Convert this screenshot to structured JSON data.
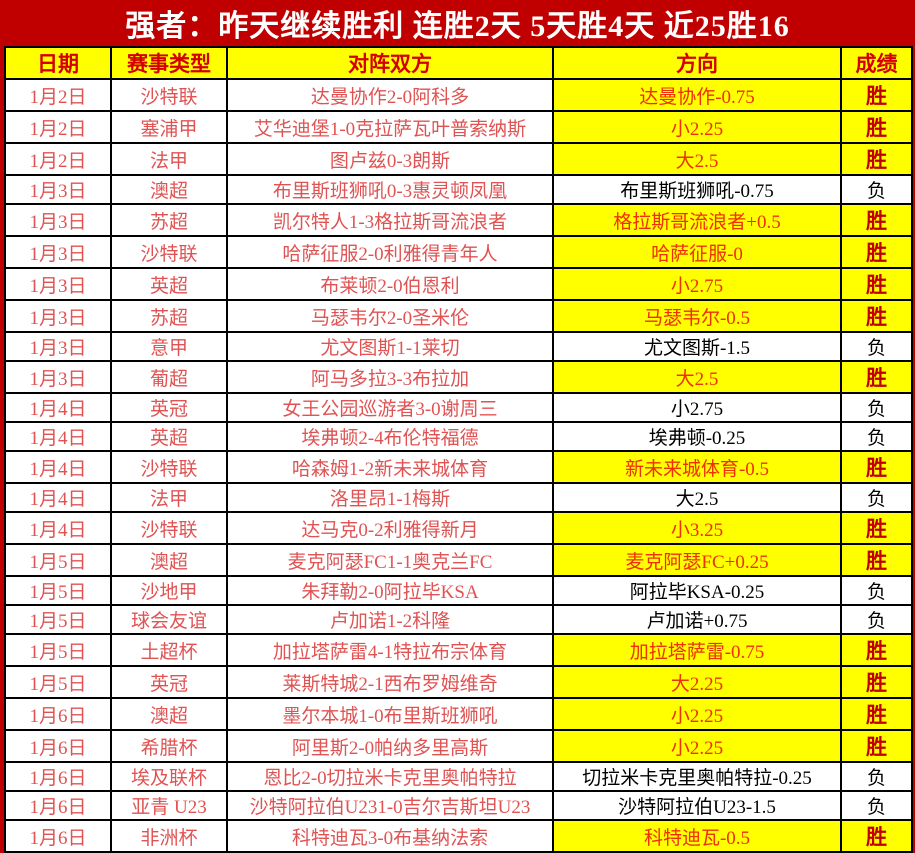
{
  "title": "强者：昨天继续胜利 连胜2天 5天胜4天 近25胜16",
  "colors": {
    "banner_background": "#c00000",
    "banner_text": "#ffffff",
    "header_background": "#ffff00",
    "header_text": "#d40000",
    "row_accent_text": "#e05353",
    "win_highlight_background": "#ffff00",
    "win_direction_text": "#ef3000",
    "win_result_text": "#c00000",
    "loss_text": "#000000",
    "grid_border": "#000000"
  },
  "table": {
    "headers": {
      "date": "日期",
      "league": "赛事类型",
      "match": "对阵双方",
      "direction": "方向",
      "result": "成绩"
    },
    "rows": [
      {
        "date": "1月2日",
        "league": "沙特联",
        "match": "达曼协作2-0阿科多",
        "direction": "达曼协作-0.75",
        "result": "胜",
        "win": true
      },
      {
        "date": "1月2日",
        "league": "塞浦甲",
        "match": "艾华迪堡1-0克拉萨瓦叶普索纳斯",
        "direction": "小2.25",
        "result": "胜",
        "win": true
      },
      {
        "date": "1月2日",
        "league": "法甲",
        "match": "图卢兹0-3朗斯",
        "direction": "大2.5",
        "result": "胜",
        "win": true
      },
      {
        "date": "1月3日",
        "league": "澳超",
        "match": "布里斯班狮吼0-3惠灵顿凤凰",
        "direction": "布里斯班狮吼-0.75",
        "result": "负",
        "win": false
      },
      {
        "date": "1月3日",
        "league": "苏超",
        "match": "凯尔特人1-3格拉斯哥流浪者",
        "direction": "格拉斯哥流浪者+0.5",
        "result": "胜",
        "win": true
      },
      {
        "date": "1月3日",
        "league": "沙特联",
        "match": "哈萨征服2-0利雅得青年人",
        "direction": "哈萨征服-0",
        "result": "胜",
        "win": true
      },
      {
        "date": "1月3日",
        "league": "英超",
        "match": "布莱顿2-0伯恩利",
        "direction": "小2.75",
        "result": "胜",
        "win": true
      },
      {
        "date": "1月3日",
        "league": "苏超",
        "match": "马瑟韦尔2-0圣米伦",
        "direction": "马瑟韦尔-0.5",
        "result": "胜",
        "win": true
      },
      {
        "date": "1月3日",
        "league": "意甲",
        "match": "尤文图斯1-1莱切",
        "direction": "尤文图斯-1.5",
        "result": "负",
        "win": false
      },
      {
        "date": "1月3日",
        "league": "葡超",
        "match": "阿马多拉3-3布拉加",
        "direction": "大2.5",
        "result": "胜",
        "win": true
      },
      {
        "date": "1月4日",
        "league": "英冠",
        "match": "女王公园巡游者3-0谢周三",
        "direction": "小2.75",
        "result": "负",
        "win": false
      },
      {
        "date": "1月4日",
        "league": "英超",
        "match": "埃弗顿2-4布伦特福德",
        "direction": "埃弗顿-0.25",
        "result": "负",
        "win": false
      },
      {
        "date": "1月4日",
        "league": "沙特联",
        "match": "哈森姆1-2新未来城体育",
        "direction": "新未来城体育-0.5",
        "result": "胜",
        "win": true
      },
      {
        "date": "1月4日",
        "league": "法甲",
        "match": "洛里昂1-1梅斯",
        "direction": "大2.5",
        "result": "负",
        "win": false
      },
      {
        "date": "1月4日",
        "league": "沙特联",
        "match": "达马克0-2利雅得新月",
        "direction": "小3.25",
        "result": "胜",
        "win": true
      },
      {
        "date": "1月5日",
        "league": "澳超",
        "match": "麦克阿瑟FC1-1奥克兰FC",
        "direction": "麦克阿瑟FC+0.25",
        "result": "胜",
        "win": true
      },
      {
        "date": "1月5日",
        "league": "沙地甲",
        "match": "朱拜勒2-0阿拉毕KSA",
        "direction": "阿拉毕KSA-0.25",
        "result": "负",
        "win": false
      },
      {
        "date": "1月5日",
        "league": "球会友谊",
        "match": "卢加诺1-2科隆",
        "direction": "卢加诺+0.75",
        "result": "负",
        "win": false
      },
      {
        "date": "1月5日",
        "league": "土超杯",
        "match": "加拉塔萨雷4-1特拉布宗体育",
        "direction": "加拉塔萨雷-0.75",
        "result": "胜",
        "win": true
      },
      {
        "date": "1月5日",
        "league": "英冠",
        "match": "莱斯特城2-1西布罗姆维奇",
        "direction": "大2.25",
        "result": "胜",
        "win": true
      },
      {
        "date": "1月6日",
        "league": "澳超",
        "match": "墨尔本城1-0布里斯班狮吼",
        "direction": "小2.25",
        "result": "胜",
        "win": true
      },
      {
        "date": "1月6日",
        "league": "希腊杯",
        "match": "阿里斯2-0帕纳多里高斯",
        "direction": "小2.25",
        "result": "胜",
        "win": true
      },
      {
        "date": "1月6日",
        "league": "埃及联杯",
        "match": "恩比2-0切拉米卡克里奥帕特拉",
        "direction": "切拉米卡克里奥帕特拉-0.25",
        "result": "负",
        "win": false
      },
      {
        "date": "1月6日",
        "league": "亚青 U23",
        "match": "沙特阿拉伯U231-0吉尔吉斯坦U23",
        "direction": "沙特阿拉伯U23-1.5",
        "result": "负",
        "win": false
      },
      {
        "date": "1月6日",
        "league": "非洲杯",
        "match": "科特迪瓦3-0布基纳法索",
        "direction": "科特迪瓦-0.5",
        "result": "胜",
        "win": true
      }
    ]
  }
}
